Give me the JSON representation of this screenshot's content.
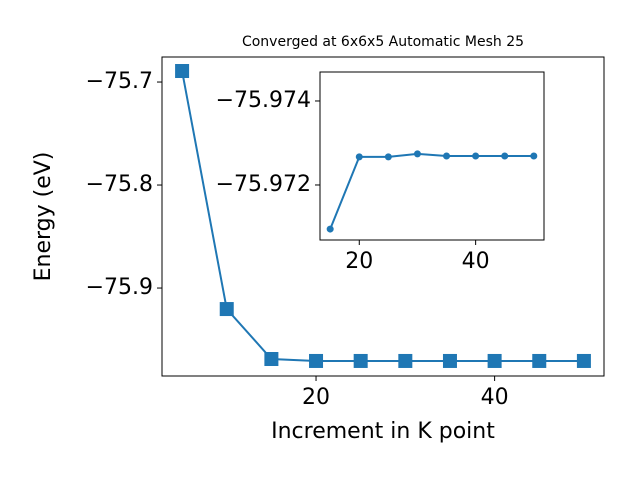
{
  "chart_data": [
    {
      "type": "line",
      "title": "Converged at 6x6x5 Automatic Mesh 25",
      "x_label": "Increment in K point",
      "y_label": "Energy (eV)",
      "x": [
        5,
        10,
        15,
        20,
        25,
        30,
        35,
        40,
        45,
        50
      ],
      "values": [
        -75.6893,
        -75.9204,
        -75.9689,
        -75.9708,
        -75.9708,
        -75.9708,
        -75.9708,
        -75.9708,
        -75.9708,
        -75.9708
      ],
      "color": "#1f77b4",
      "marker": "square",
      "xlim": [
        2.75,
        52.25
      ],
      "xticks": [
        20,
        40
      ],
      "ylim": [
        -75.9854,
        -75.6757
      ],
      "yticks": [
        {
          "value": -75.9,
          "label": "−75.9"
        },
        {
          "value": -75.8,
          "label": "−75.8"
        },
        {
          "value": -75.7,
          "label": "−75.7"
        }
      ]
    },
    {
      "type": "line",
      "x": [
        15,
        20,
        25,
        30,
        35,
        40,
        45,
        50
      ],
      "values": [
        -75.97095,
        -75.97267,
        -75.97267,
        -75.97274,
        -75.97269,
        -75.97269,
        -75.97269,
        -75.97269
      ],
      "color": "#1f77b4",
      "marker": "circle",
      "xlim": [
        13.25,
        51.75
      ],
      "xticks": [
        20,
        40
      ],
      "ylim": [
        -75.97069,
        -75.97469
      ],
      "yticks": [
        {
          "value": -75.972,
          "label": "−75.972"
        },
        {
          "value": -75.974,
          "label": "−75.974"
        }
      ]
    }
  ]
}
